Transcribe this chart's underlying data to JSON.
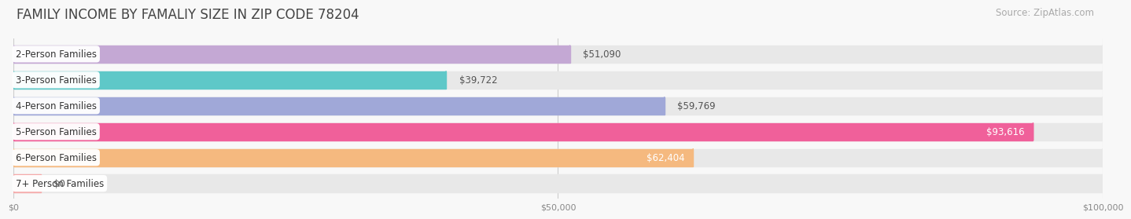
{
  "title": "FAMILY INCOME BY FAMALIY SIZE IN ZIP CODE 78204",
  "source": "Source: ZipAtlas.com",
  "categories": [
    "2-Person Families",
    "3-Person Families",
    "4-Person Families",
    "5-Person Families",
    "6-Person Families",
    "7+ Person Families"
  ],
  "values": [
    51090,
    39722,
    59769,
    93616,
    62404,
    0
  ],
  "bar_colors": [
    "#c4a8d4",
    "#5ec8c8",
    "#a0a8d8",
    "#f0609a",
    "#f5b97f",
    "#f5aaaa"
  ],
  "bar_bg_color": "#e8e8e8",
  "xlim": [
    0,
    100000
  ],
  "xticks": [
    0,
    50000,
    100000
  ],
  "xtick_labels": [
    "$0",
    "$50,000",
    "$100,000"
  ],
  "title_fontsize": 12,
  "source_fontsize": 8.5,
  "bar_label_fontsize": 8.5,
  "category_fontsize": 8.5,
  "background_color": "#f8f8f8",
  "bar_height": 0.68,
  "value_labels": [
    "$51,090",
    "$39,722",
    "$59,769",
    "$93,616",
    "$62,404",
    "$0"
  ],
  "label_inside": [
    false,
    false,
    false,
    true,
    true,
    false
  ],
  "zero_stub": 2500
}
